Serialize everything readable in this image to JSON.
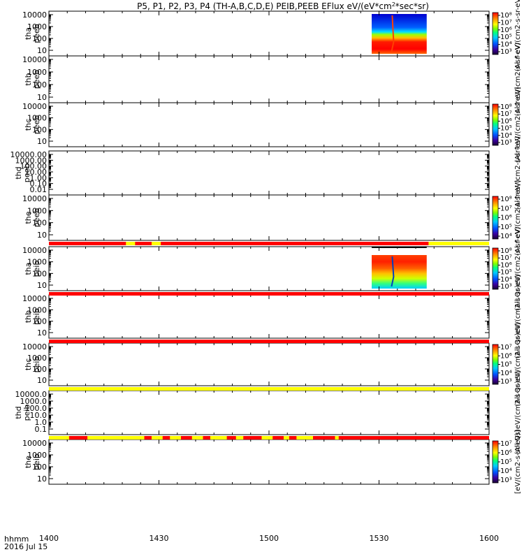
{
  "chart_data": {
    "type": "heatmap",
    "title": "P5, P1, P2, P3, P4 (TH-A,B,C,D,E) PEIB,PEEB EFlux eV/(eV*cm",
    "title_sup": "2",
    "title_end": "*sec*sr)",
    "time_label": "hhmm",
    "date_label": "2016 Jul 15",
    "x_ticks": [
      "1400",
      "1430",
      "1500",
      "1530",
      "1600"
    ],
    "x_range_minutes": [
      0,
      120
    ],
    "panels": [
      {
        "id": "tha-peeb",
        "label1": "tha",
        "label2": "peeb",
        "ylog": true,
        "yticks": [
          "10",
          "100",
          "1000",
          "10000"
        ],
        "cbar": true,
        "cbar_ticks": [
          "10³",
          "10⁴",
          "10⁵",
          "10⁶",
          "10⁷",
          "10⁸"
        ],
        "cbar_label": "(Al ↑eV/(cm2-s-sr-eV)",
        "spectrogram": {
          "t_start": 88.0,
          "t_end": 103.0,
          "low": "red",
          "mid": "yellow-green",
          "high": "blue"
        }
      },
      {
        "id": "thb-peeb",
        "label1": "thb",
        "label2": "peeb",
        "ylog": true,
        "yticks": [
          "10",
          "100",
          "1000",
          "10000"
        ],
        "cbar": false,
        "cbar_label": "(Al↑eV/(cm2-s-sr-eV)"
      },
      {
        "id": "thc-peeb",
        "label1": "thc",
        "label2": "peeb",
        "ylog": true,
        "yticks": [
          "10",
          "100",
          "1000",
          "10000"
        ],
        "cbar": true,
        "cbar_ticks": [
          "10³",
          "10⁴",
          "10⁵",
          "10⁶",
          "10⁷",
          "10⁸"
        ],
        "cbar_label": "(Al ↑eV/(cm2-s-sr-eV)"
      },
      {
        "id": "thd-peeb",
        "label1": "thd",
        "label2": "peeb",
        "ylog": false,
        "yticks": [
          "0.01",
          "0.10",
          "1.00",
          "10.00",
          "100.00",
          "1000.00",
          "10000.00"
        ],
        "cbar": false,
        "cbar_label": "(Al↑eV/(cm2-s-sr-eV)"
      },
      {
        "id": "the-peeb",
        "label1": "the",
        "label2": "peeb",
        "ylog": true,
        "yticks": [
          "10",
          "100",
          "1000",
          "10000"
        ],
        "cbar": true,
        "cbar_ticks": [
          "10⁴",
          "10⁵",
          "10⁶",
          "10⁷",
          "10⁸"
        ],
        "cbar_label": "(Al ↑eV/(cm2-s-sr-eV)"
      },
      {
        "id": "tha-peib",
        "label1": "tha",
        "label2": "peib",
        "ylog": true,
        "yticks": [
          "10",
          "100",
          "1000",
          "10000"
        ],
        "cbar": true,
        "cbar_ticks": [
          "10³",
          "10⁴",
          "10⁵",
          "10⁶",
          "10⁷",
          "10⁸"
        ],
        "cbar_label": "(All Qs)eV/(cm2-s-sr-eV)",
        "spectrogram": {
          "t_start": 88.0,
          "t_end": 103.0,
          "low": "yellow-green",
          "mid": "orange",
          "high": "red"
        }
      },
      {
        "id": "thb-peib",
        "label1": "thb",
        "label2": "peib",
        "ylog": true,
        "yticks": [
          "10",
          "100",
          "1000",
          "10000"
        ],
        "cbar": false,
        "cbar_label": "(All Qs)eV/(cm2-s-sr-eV)"
      },
      {
        "id": "thc-peib",
        "label1": "thc",
        "label2": "peib",
        "ylog": true,
        "yticks": [
          "10",
          "100",
          "1000",
          "10000"
        ],
        "cbar": true,
        "cbar_ticks": [
          "10³",
          "10⁴",
          "10⁵",
          "10⁶",
          "10⁷"
        ],
        "cbar_label": "(All Qs)eV/(cm2-s-sr-eV)"
      },
      {
        "id": "thd-peib",
        "label1": "thd",
        "label2": "peib",
        "ylog": false,
        "yticks": [
          "0.1",
          "1.0",
          "10.0",
          "100.0",
          "1000.0",
          "10000.0"
        ],
        "cbar": false,
        "cbar_label": "(All Qs)eV/(cm2-s-sr-eV)"
      },
      {
        "id": "the-peib",
        "label1": "the",
        "label2": "peib",
        "ylog": true,
        "yticks": [
          "10",
          "100",
          "1000",
          "10000"
        ],
        "cbar": true,
        "cbar_ticks": [
          "10³",
          "10⁴",
          "10⁵",
          "10⁶",
          "10⁷"
        ],
        "cbar_label": "[eV/(cm2-s-sr-eV)]"
      }
    ],
    "status_bars": [
      {
        "after_panel": 4,
        "yellow_segments_minutes": [
          [
            21.0,
            23.5
          ],
          [
            28.0,
            30.5
          ],
          [
            103.5,
            120.0
          ]
        ],
        "black_overlay_minutes": [
          [
            88.0,
            103.0
          ]
        ]
      },
      {
        "after_panel": 5,
        "yellow_segments_minutes": []
      },
      {
        "after_panel": 6,
        "yellow_segments_minutes": []
      },
      {
        "after_panel": 7,
        "yellow_segments_minutes": [
          [
            0,
            120
          ]
        ]
      },
      {
        "after_panel": 8,
        "yellow_segments_minutes": [
          [
            0,
            5.5
          ],
          [
            10.5,
            26.0
          ],
          [
            28.0,
            31.0
          ],
          [
            33.0,
            36.0
          ],
          [
            39.0,
            42.0
          ],
          [
            44.0,
            48.5
          ],
          [
            51.0,
            53.0
          ],
          [
            58.0,
            61.0
          ],
          [
            64.0,
            65.5
          ],
          [
            67.5,
            72.0
          ],
          [
            78.0,
            79.0
          ]
        ]
      }
    ],
    "colors": {
      "status_red": "#ff0000",
      "status_yellow": "#ffff00"
    }
  }
}
